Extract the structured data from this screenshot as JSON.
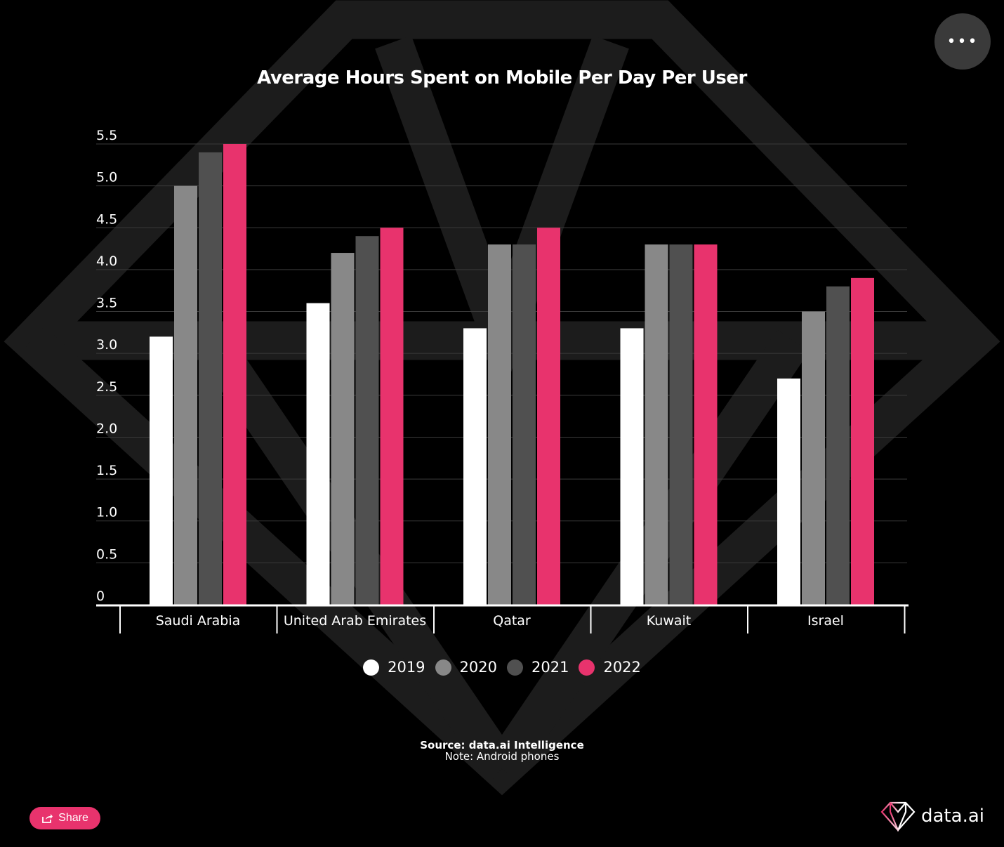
{
  "chart_data": {
    "type": "bar",
    "title": "Average Hours Spent on Mobile Per Day Per User",
    "categories": [
      "Saudi Arabia",
      "United Arab Emirates",
      "Qatar",
      "Kuwait",
      "Israel"
    ],
    "series": [
      {
        "name": "2019",
        "color": "#ffffff",
        "values": [
          3.2,
          3.6,
          3.3,
          3.3,
          2.7
        ]
      },
      {
        "name": "2020",
        "color": "#888888",
        "values": [
          5.0,
          4.2,
          4.3,
          4.3,
          3.5
        ]
      },
      {
        "name": "2021",
        "color": "#505050",
        "values": [
          5.4,
          4.4,
          4.3,
          4.3,
          3.8
        ]
      },
      {
        "name": "2022",
        "color": "#e8336d",
        "values": [
          5.5,
          4.5,
          4.5,
          4.3,
          3.9
        ]
      }
    ],
    "yticks": [
      "0",
      "0.5",
      "1.0",
      "1.5",
      "2.0",
      "2.5",
      "3.0",
      "3.5",
      "4.0",
      "4.5",
      "5.0",
      "5.5"
    ],
    "ylim": [
      0,
      5.5
    ],
    "grid": true,
    "legend_placement": "bottom"
  },
  "source": "Source: data.ai Intelligence",
  "note": "Note: Android phones",
  "share_label": "Share",
  "logo_text": "data.ai",
  "more_icon": "more-horizontal-icon",
  "accent": "#e8336d"
}
